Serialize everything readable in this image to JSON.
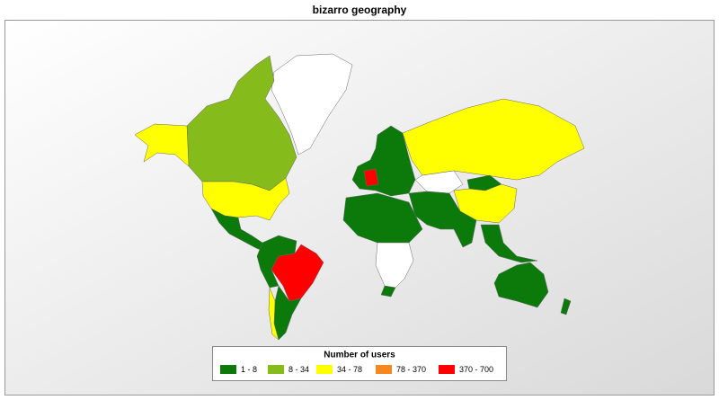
{
  "title": "bizarro geography",
  "legend": {
    "title": "Number of users",
    "items": [
      {
        "label": "1 - 8",
        "color": "#0b7a0b"
      },
      {
        "label": "8 - 34",
        "color": "#86bb1c"
      },
      {
        "label": "34 - 78",
        "color": "#ffff00"
      },
      {
        "label": "78 - 370",
        "color": "#f5891f"
      },
      {
        "label": "370 - 700",
        "color": "#ff0000"
      }
    ]
  }
}
